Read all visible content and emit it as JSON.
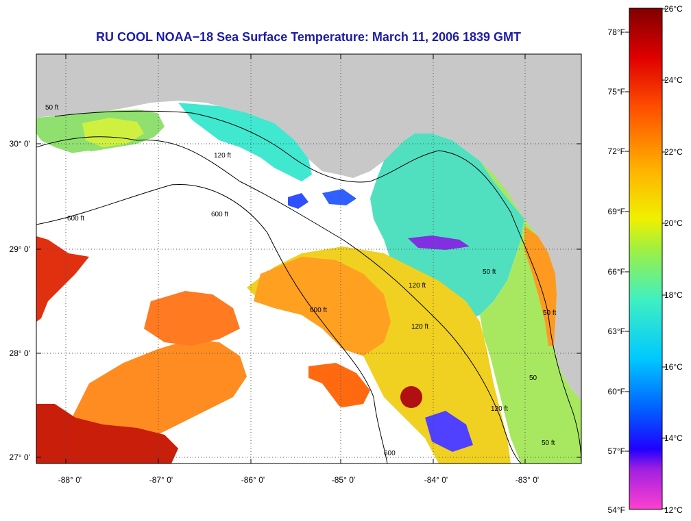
{
  "title": "RU COOL  NOAA−18  Sea Surface Temperature:  March 11, 2006 1839 GMT",
  "map": {
    "latitude_labels": [
      "30° 0'",
      "29° 0'",
      "28° 0'",
      "27° 0'"
    ],
    "longitude_labels": [
      "-88° 0'",
      "-87° 0'",
      "-86° 0'",
      "-85° 0'",
      "-84° 0'",
      "-83° 0'"
    ],
    "contour_labels": [
      "600 ft",
      "600 ft",
      "600 ft",
      "120 ft",
      "120 ft",
      "120 ft",
      "120 ft",
      "50 ft",
      "50 ft",
      "50 ft",
      "50",
      "50 ft",
      "600"
    ],
    "land_color": "#c8c8c8",
    "cloud_color": "#ffffff"
  },
  "colorbar": {
    "fahrenheit_labels": [
      "78°F",
      "75°F",
      "72°F",
      "69°F",
      "66°F",
      "63°F",
      "60°F",
      "57°F",
      "54°F"
    ],
    "celsius_labels": [
      "26°C",
      "24°C",
      "22°C",
      "20°C",
      "18°C",
      "16°C",
      "14°C",
      "12°C"
    ],
    "colors": [
      "#ff40d0",
      "#8020e0",
      "#0000ff",
      "#0090ff",
      "#00e0ff",
      "#60f0a0",
      "#e8f000",
      "#ffb000",
      "#ff5000",
      "#e00000",
      "#800000"
    ]
  }
}
